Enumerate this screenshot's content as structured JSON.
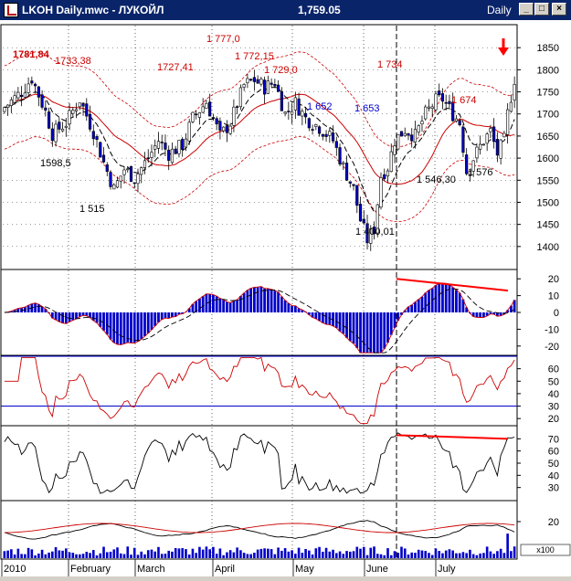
{
  "window": {
    "title": "LKOH Daily.mwc - ЛУКОЙЛ",
    "price": "1,759.05",
    "period": "Daily",
    "min_label": "_",
    "max_label": "□",
    "close_label": "×"
  },
  "chart_data": {
    "type": "candlestick",
    "symbol": "LKOH",
    "x_labels": [
      "2010",
      "February",
      "March",
      "April",
      "May",
      "June",
      "July"
    ],
    "panels": [
      {
        "name": "price",
        "ylim": [
          1350,
          1900
        ],
        "y_ticks": [
          1400,
          1450,
          1500,
          1550,
          1600,
          1650,
          1700,
          1750,
          1800,
          1850
        ],
        "annotations": [
          {
            "text": "1781,84",
            "value": 1781.84,
            "color": "#cc0000",
            "bold": true
          },
          {
            "text": "1733,38",
            "value": 1733.38,
            "color": "#cc0000"
          },
          {
            "text": "1727,41",
            "value": 1727.41,
            "color": "#cc0000"
          },
          {
            "text": "1 777,0",
            "value": 1777.0,
            "color": "#cc0000"
          },
          {
            "text": "1 772,15",
            "value": 1772.15,
            "color": "#cc0000"
          },
          {
            "text": "1 729,0",
            "value": 1729.0,
            "color": "#cc0000"
          },
          {
            "text": "1 734",
            "value": 1734,
            "color": "#cc0000"
          },
          {
            "text": "1 674",
            "value": 1674,
            "color": "#cc0000"
          },
          {
            "text": "1 652",
            "value": 1652,
            "color": "#0000cc"
          },
          {
            "text": "1 653",
            "value": 1653,
            "color": "#0000cc"
          },
          {
            "text": "1598,5",
            "value": 1598.5,
            "color": "#000000"
          },
          {
            "text": "1 515",
            "value": 1515,
            "color": "#000000"
          },
          {
            "text": "1 400,01",
            "value": 1400.01,
            "color": "#000000"
          },
          {
            "text": "1 546,30",
            "value": 1546.3,
            "color": "#000000"
          },
          {
            "text": "1 576",
            "value": 1576,
            "color": "#000000"
          }
        ]
      },
      {
        "name": "macd-histogram",
        "ylim": [
          -25,
          25
        ],
        "y_ticks": [
          -20,
          -10,
          0,
          10,
          20
        ]
      },
      {
        "name": "rsi",
        "ylim": [
          15,
          70
        ],
        "y_ticks": [
          20,
          30,
          40,
          50,
          60
        ],
        "levels": [
          30,
          70
        ]
      },
      {
        "name": "stochastic",
        "ylim": [
          20,
          80
        ],
        "y_ticks": [
          30,
          40,
          50,
          60,
          70
        ]
      },
      {
        "name": "volume",
        "y_ticks": [
          20
        ],
        "scale_label": "x100"
      }
    ],
    "colors": {
      "up": "#ffffff",
      "down": "#0000c8",
      "ma": "#cc0000",
      "signal": "#000000",
      "envelope": "#cc0000",
      "arrow": "#ff0000"
    }
  }
}
